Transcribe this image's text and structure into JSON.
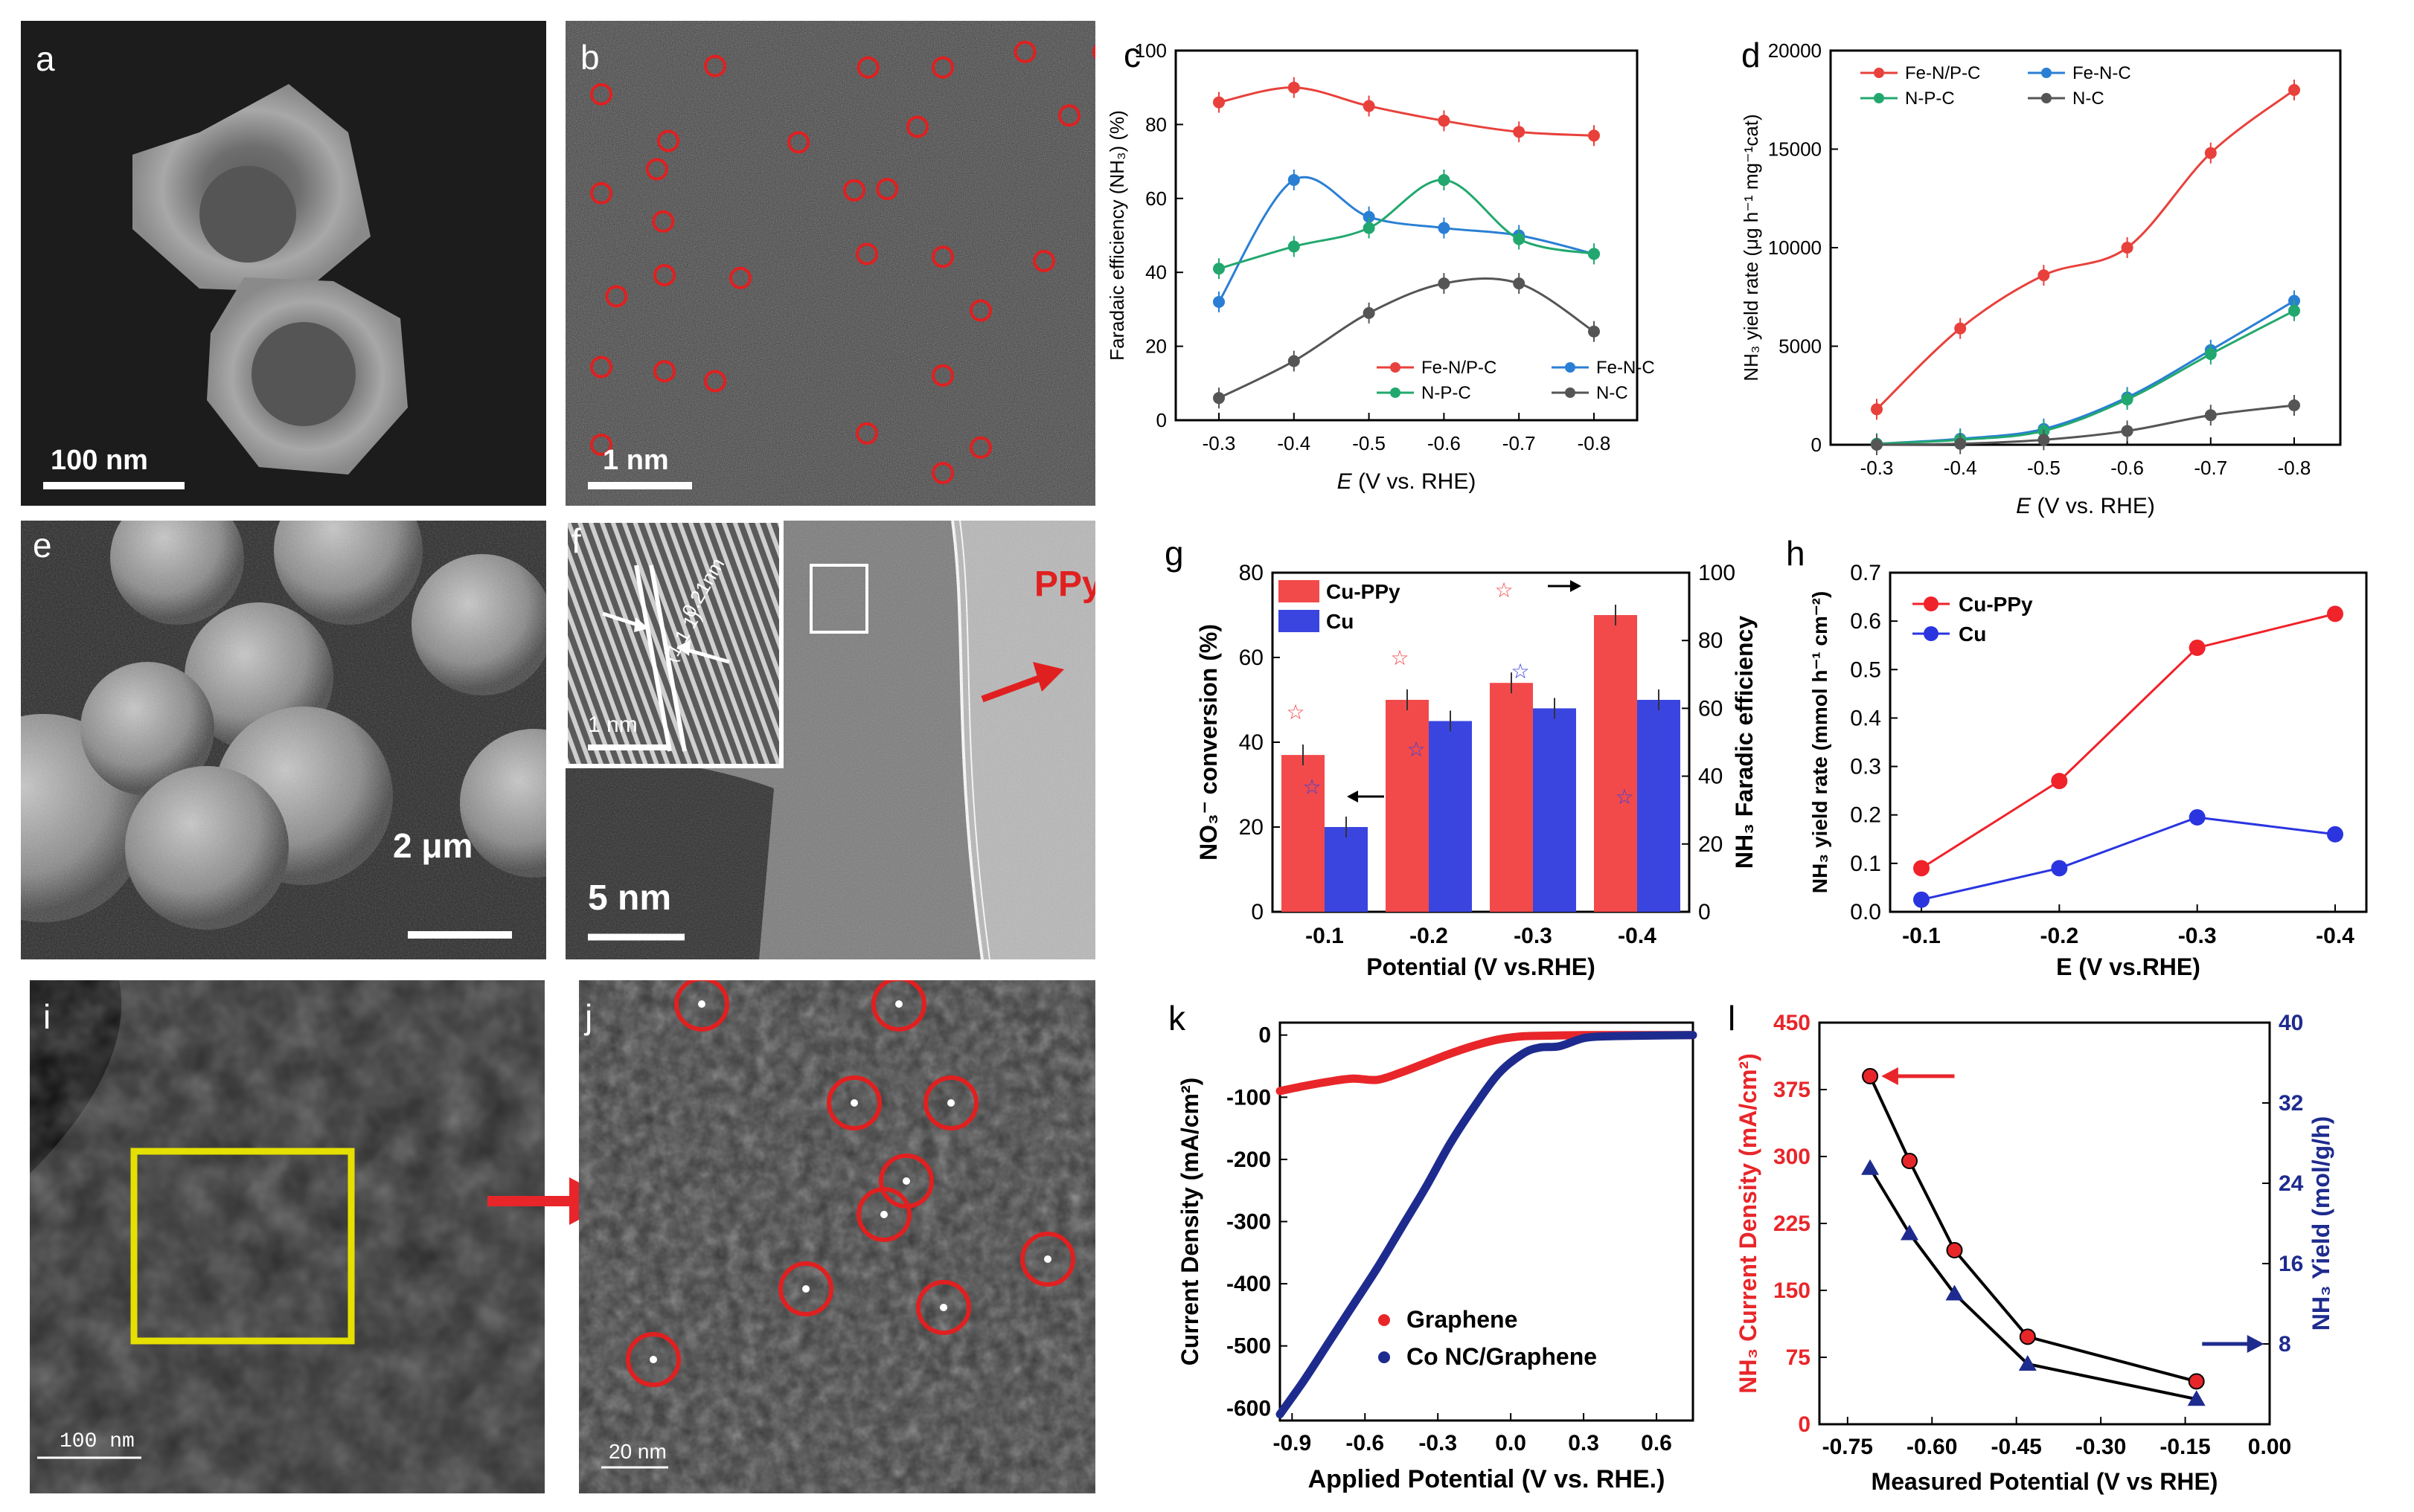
{
  "panels": {
    "a": {
      "label": "a",
      "scale": "100 nm"
    },
    "b": {
      "label": "b",
      "scale": "1 nm"
    },
    "e": {
      "label": "e",
      "scale": "2 μm"
    },
    "f": {
      "label": "f",
      "scale": "5 nm",
      "inset_scale": "1 nm",
      "d_spacing": "0.21nm",
      "plane": "(1 1 1)",
      "ppy": "PPy"
    },
    "i": {
      "label": "i",
      "scale": "100 nm"
    },
    "j": {
      "label": "j",
      "scale": "20 nm"
    }
  },
  "colors": {
    "red": "#e8413c",
    "blue": "#2a7fd4",
    "green": "#22a86e",
    "gray": "#555555",
    "bar_red": "#f24a4a",
    "bar_blue": "#3a45e0",
    "navy": "#1a2a8a",
    "yellow": "#e6e000"
  },
  "chart_data": [
    {
      "id": "c",
      "label": "c",
      "type": "line",
      "xlabel_italic": "E",
      "xlabel_rest": " (V vs. RHE)",
      "ylabel": "Faradaic efficiency (NH₃) (%)",
      "categories": [
        "-0.3",
        "-0.4",
        "-0.5",
        "-0.6",
        "-0.7",
        "-0.8"
      ],
      "ylim": [
        0,
        100
      ],
      "yticks": [
        "0",
        "20",
        "40",
        "60",
        "80",
        "100"
      ],
      "series": [
        {
          "name": "Fe-N/P-C",
          "color": "#e8413c",
          "values": [
            86,
            90,
            85,
            81,
            78,
            77
          ]
        },
        {
          "name": "Fe-N-C",
          "color": "#2a7fd4",
          "values": [
            32,
            65,
            55,
            52,
            50,
            45
          ]
        },
        {
          "name": "N-P-C",
          "color": "#22a86e",
          "values": [
            41,
            47,
            52,
            65,
            49,
            45
          ]
        },
        {
          "name": "N-C",
          "color": "#555555",
          "values": [
            6,
            16,
            29,
            37,
            37,
            24
          ]
        }
      ]
    },
    {
      "id": "d",
      "label": "d",
      "type": "line",
      "xlabel_italic": "E",
      "xlabel_rest": " (V vs. RHE)",
      "ylabel": "NH₃ yield rate (μg h⁻¹ mg⁻¹cat)",
      "categories": [
        "-0.3",
        "-0.4",
        "-0.5",
        "-0.6",
        "-0.7",
        "-0.8"
      ],
      "ylim": [
        0,
        20000
      ],
      "yticks": [
        "0",
        "5000",
        "10000",
        "15000",
        "20000"
      ],
      "series": [
        {
          "name": "Fe-N/P-C",
          "color": "#e8413c",
          "values": [
            1800,
            5900,
            8600,
            10000,
            14800,
            18000
          ]
        },
        {
          "name": "Fe-N-C",
          "color": "#2a7fd4",
          "values": [
            50,
            300,
            800,
            2400,
            4800,
            7300
          ]
        },
        {
          "name": "N-P-C",
          "color": "#22a86e",
          "values": [
            50,
            250,
            700,
            2300,
            4600,
            6800
          ]
        },
        {
          "name": "N-C",
          "color": "#555555",
          "values": [
            0,
            50,
            250,
            700,
            1500,
            2000
          ]
        }
      ]
    },
    {
      "id": "g",
      "label": "g",
      "type": "bar",
      "xlabel": "Potential (V vs.RHE)",
      "ylabel_left": "NO₃⁻ conversion (%)",
      "ylabel_right": "NH₃ Faradic efficiency",
      "categories": [
        "-0.1",
        "-0.2",
        "-0.3",
        "-0.4"
      ],
      "ylim": [
        0,
        80
      ],
      "yticks": [
        "0",
        "20",
        "40",
        "60",
        "80"
      ],
      "y2lim": [
        0,
        100
      ],
      "y2ticks": [
        "0",
        "20",
        "40",
        "60",
        "80",
        "100"
      ],
      "series": [
        {
          "name": "Cu-PPy",
          "color": "#f24a4a",
          "values": [
            37,
            50,
            54,
            70
          ],
          "fe": [
            59,
            75,
            95,
            65
          ]
        },
        {
          "name": "Cu",
          "color": "#3a45e0",
          "values": [
            20,
            45,
            48,
            50
          ],
          "fe": [
            37,
            48,
            71,
            34
          ]
        }
      ]
    },
    {
      "id": "h",
      "label": "h",
      "type": "line",
      "xlabel": "E (V vs.RHE)",
      "ylabel": "NH₃ yield rate (mmol h⁻¹ cm⁻²)",
      "categories": [
        "-0.1",
        "-0.2",
        "-0.3",
        "-0.4"
      ],
      "ylim": [
        0,
        0.7
      ],
      "yticks": [
        "0.0",
        "0.1",
        "0.2",
        "0.3",
        "0.4",
        "0.5",
        "0.6",
        "0.7"
      ],
      "series": [
        {
          "name": "Cu-PPy",
          "color": "#f0222a",
          "values": [
            0.09,
            0.27,
            0.545,
            0.615
          ]
        },
        {
          "name": "Cu",
          "color": "#2a35e0",
          "values": [
            0.025,
            0.09,
            0.195,
            0.16
          ]
        }
      ]
    },
    {
      "id": "k",
      "label": "k",
      "type": "line",
      "xlabel": "Applied Potential (V vs. RHE.)",
      "ylabel": "Current Density (mA/cm²)",
      "xlim": [
        -0.95,
        0.75
      ],
      "xticks": [
        "-0.9",
        "-0.6",
        "-0.3",
        "0.0",
        "0.3",
        "0.6"
      ],
      "ylim": [
        -620,
        20
      ],
      "yticks": [
        "-600",
        "-500",
        "-400",
        "-300",
        "-200",
        "-100",
        "0"
      ],
      "series": [
        {
          "name": "Graphene",
          "color": "#e8262a",
          "x": [
            -0.95,
            -0.85,
            -0.75,
            -0.65,
            -0.55,
            -0.45,
            -0.35,
            -0.25,
            -0.15,
            -0.05,
            0.05,
            0.15,
            0.3,
            0.5,
            0.75
          ],
          "y": [
            -90,
            -82,
            -75,
            -70,
            -72,
            -60,
            -45,
            -30,
            -17,
            -7,
            -2,
            -1,
            0,
            0,
            0
          ]
        },
        {
          "name": "Co NC/Graphene",
          "color": "#1e2b8e",
          "x": [
            -0.95,
            -0.85,
            -0.75,
            -0.65,
            -0.55,
            -0.45,
            -0.35,
            -0.25,
            -0.15,
            -0.05,
            0.05,
            0.12,
            0.2,
            0.3,
            0.4,
            0.55,
            0.75
          ],
          "y": [
            -610,
            -555,
            -495,
            -435,
            -375,
            -310,
            -245,
            -175,
            -115,
            -62,
            -30,
            -20,
            -18,
            -5,
            -2,
            -1,
            0
          ]
        }
      ]
    },
    {
      "id": "l",
      "label": "l",
      "type": "line",
      "xlabel": "Measured Potential (V vs RHE)",
      "ylabel_left": "NH₃ Current Density (mA/cm²)",
      "ylabel_right": "NH₃ Yield (mol/g/h)",
      "xlim": [
        -0.8,
        0.0
      ],
      "xticks": [
        "-0.75",
        "-0.60",
        "-0.45",
        "-0.30",
        "-0.15",
        "0.00"
      ],
      "ylim": [
        0,
        450
      ],
      "yticks": [
        "0",
        "75",
        "150",
        "225",
        "300",
        "375",
        "450"
      ],
      "y2lim": [
        0,
        40
      ],
      "y2ticks": [
        "8",
        "16",
        "24",
        "32",
        "40"
      ],
      "series": [
        {
          "name": "NH₃ Current Density",
          "color": "#e8262a",
          "x": [
            -0.71,
            -0.64,
            -0.56,
            -0.43,
            -0.13
          ],
          "y": [
            390,
            295,
            195,
            98,
            48
          ]
        },
        {
          "name": "NH₃ Yield",
          "color": "#1e2b8e",
          "x": [
            -0.71,
            -0.64,
            -0.56,
            -0.43,
            -0.13
          ],
          "y": [
            25.5,
            19,
            13,
            6,
            2.5
          ]
        }
      ]
    }
  ]
}
